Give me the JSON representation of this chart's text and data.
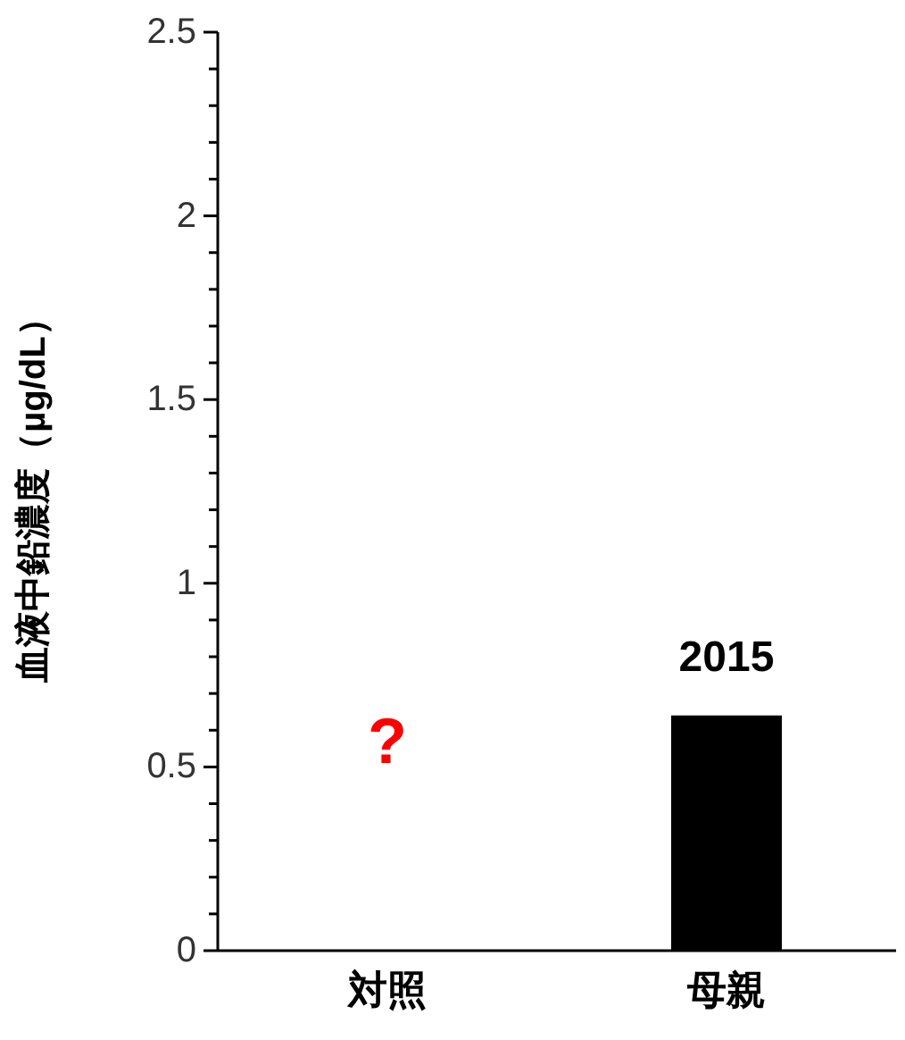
{
  "chart_data": {
    "type": "bar",
    "ylabel": "血液中鉛濃度（µg/dL）",
    "categories": [
      "対照",
      "母親"
    ],
    "series": [
      {
        "color": "#000000",
        "values": [
          null,
          0.64
        ]
      }
    ],
    "ylim": [
      0,
      2.5
    ],
    "yticks": [
      0,
      {
        "value": 0.1,
        "label": null
      },
      {
        "value": 0.2,
        "label": null
      },
      {
        "value": 0.3,
        "label": null
      },
      {
        "value": 0.4,
        "label": null
      },
      0.5,
      {
        "value": 0.6,
        "label": null
      },
      {
        "value": 0.7,
        "label": null
      },
      {
        "value": 0.8,
        "label": null
      },
      {
        "value": 0.9,
        "label": null
      },
      1,
      {
        "value": 1.1,
        "label": null
      },
      {
        "value": 1.2,
        "label": null
      },
      {
        "value": 1.3,
        "label": null
      },
      {
        "value": 1.4,
        "label": null
      },
      1.5,
      {
        "value": 1.6,
        "label": null
      },
      {
        "value": 1.7,
        "label": null
      },
      {
        "value": 1.8,
        "label": null
      },
      {
        "value": 1.9,
        "label": null
      },
      2,
      {
        "value": 2.1,
        "label": null
      },
      {
        "value": 2.2,
        "label": null
      },
      {
        "value": 2.3,
        "label": null
      },
      {
        "value": 2.4,
        "label": null
      },
      2.5
    ],
    "grid": false,
    "legend": false,
    "annotations": [
      "?",
      "2015"
    ]
  }
}
